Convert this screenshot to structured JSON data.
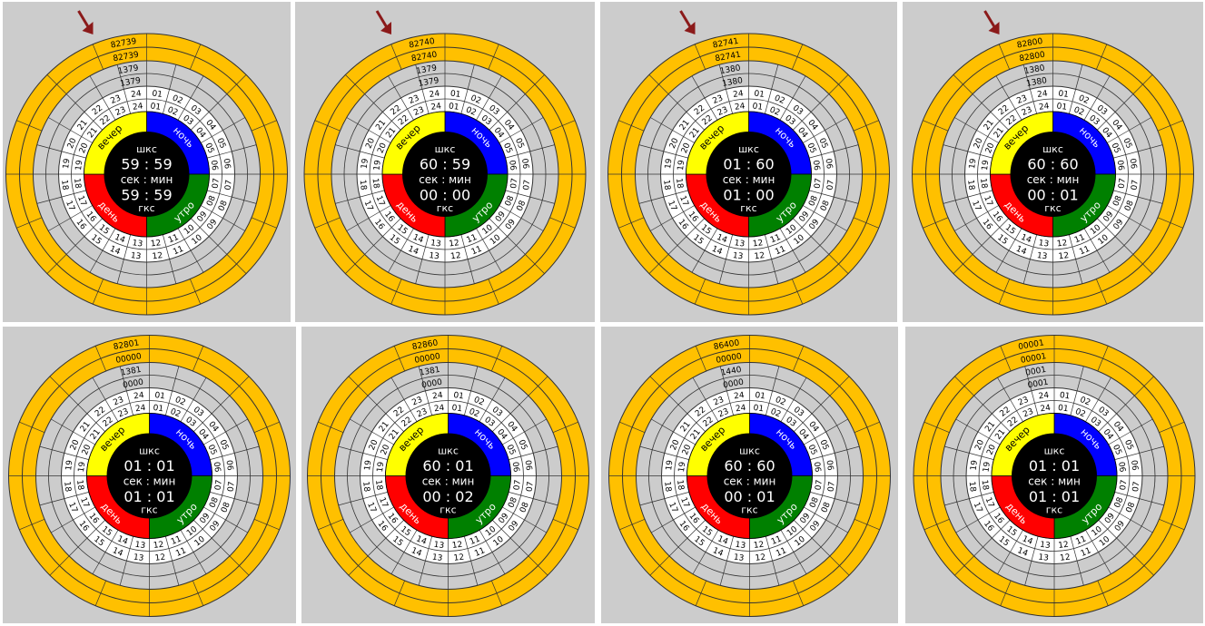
{
  "panels": [
    {
      "outer": [
        "82739",
        "82739"
      ],
      "mid": [
        "1379",
        "1379"
      ],
      "arrow": true,
      "top": "шкс",
      "time1": "59 : 59",
      "sep": "сек : мин",
      "time2": "59 : 59",
      "bottom": "гкс",
      "seg": {
        "night": "ночь",
        "morning": "утро",
        "day": "день",
        "evening": "вечер"
      }
    },
    {
      "outer": [
        "82740",
        "82740"
      ],
      "mid": [
        "1379",
        "1379"
      ],
      "arrow": true,
      "top": "шкс",
      "time1": "60 : 59",
      "sep": "сек : мин",
      "time2": "00 : 00",
      "bottom": "гкс",
      "seg": {
        "night": "ночь",
        "morning": "утро",
        "day": "день",
        "evening": "вечер"
      }
    },
    {
      "outer": [
        "82741",
        "82741"
      ],
      "mid": [
        "1380",
        "1380"
      ],
      "arrow": true,
      "top": "шкс",
      "time1": "01 : 60",
      "sep": "сек : мин",
      "time2": "01 : 00",
      "bottom": "гкс",
      "seg": {
        "night": "ночь",
        "morning": "утро",
        "day": "день",
        "evening": "вечер"
      }
    },
    {
      "outer": [
        "82800",
        "82800"
      ],
      "mid": [
        "1380",
        "1380"
      ],
      "arrow": true,
      "top": "шкс",
      "time1": "60 : 60",
      "sep": "сек : мин",
      "time2": "00 : 01",
      "bottom": "гкс",
      "seg": {
        "night": "ночь",
        "morning": "утро",
        "day": "день",
        "evening": "вечер"
      }
    },
    {
      "outer": [
        "82801",
        "00000"
      ],
      "mid": [
        "1381",
        "0000"
      ],
      "arrow": false,
      "top": "шкс",
      "time1": "01 : 01",
      "sep": "сек : мин",
      "time2": "01 : 01",
      "bottom": "гкс",
      "seg": {
        "night": "ночь",
        "morning": "утро",
        "day": "день",
        "evening": "вечер"
      }
    },
    {
      "outer": [
        "82860",
        "00000"
      ],
      "mid": [
        "1381",
        "0000"
      ],
      "arrow": false,
      "top": "шкс",
      "time1": "60 : 01",
      "sep": "сек : мин",
      "time2": "00 : 02",
      "bottom": "гкс",
      "seg": {
        "night": "ночь",
        "morning": "утро",
        "day": "день",
        "evening": "вечер"
      }
    },
    {
      "outer": [
        "86400",
        "00000"
      ],
      "mid": [
        "1440",
        "0000"
      ],
      "arrow": false,
      "top": "шкс",
      "time1": "60 : 60",
      "sep": "сек : мин",
      "time2": "00 : 01",
      "bottom": "гкс",
      "seg": {
        "night": "ночь",
        "morning": "утро",
        "day": "день",
        "evening": "вечер"
      }
    },
    {
      "outer": [
        "00001",
        "00001"
      ],
      "mid": [
        "0001",
        "0001"
      ],
      "arrow": false,
      "top": "шкс",
      "time1": "01 : 01",
      "sep": "сек : мин",
      "time2": "01 : 01",
      "bottom": "гкс",
      "seg": {
        "night": "ночь",
        "morning": "утро",
        "day": "день",
        "evening": "вечер"
      }
    }
  ],
  "hour_labels": [
    "01",
    "02",
    "03",
    "04",
    "05",
    "06",
    "07",
    "08",
    "09",
    "10",
    "11",
    "12",
    "13",
    "14",
    "15",
    "16",
    "17",
    "18",
    "19",
    "20",
    "21",
    "22",
    "23",
    "24"
  ],
  "colors": {
    "background": "#cccccc",
    "ring_orange": "#ffc000",
    "night": "#0000ff",
    "morning": "#008000",
    "day": "#ff0000",
    "evening": "#ffff00",
    "center": "#000000",
    "arrow": "#8b1a1a"
  }
}
